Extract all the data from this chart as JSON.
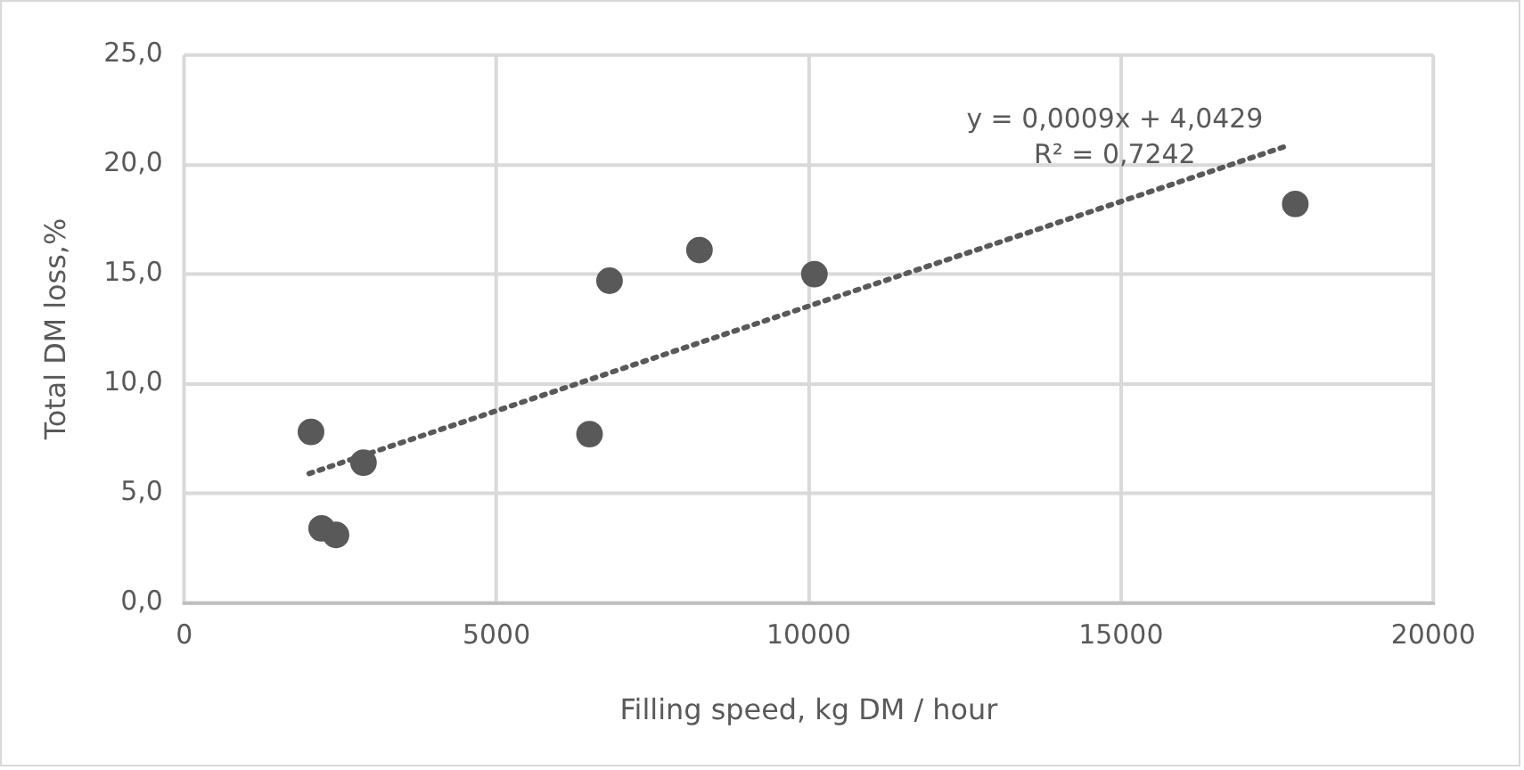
{
  "chart_data": {
    "type": "scatter",
    "xlabel": "Filling speed, kg DM / hour",
    "ylabel": "Total DM loss,%",
    "xlim": [
      0,
      20000
    ],
    "xticks": [
      0,
      5000,
      10000,
      15000,
      20000
    ],
    "ylim": [
      0,
      25
    ],
    "yticks": [
      {
        "value": 0,
        "label": "0,0"
      },
      {
        "value": 5,
        "label": "5,0"
      },
      {
        "value": 10,
        "label": "10,0"
      },
      {
        "value": 15,
        "label": "15,0"
      },
      {
        "value": 20,
        "label": "20,0"
      },
      {
        "value": 25,
        "label": "25,0"
      }
    ],
    "grid": true,
    "marker": "circle",
    "series": [
      {
        "color": "#595959",
        "x": [
          2030,
          2870,
          2200,
          2430,
          6490,
          6810,
          8250,
          10090,
          17790
        ],
        "values": [
          7.8,
          6.4,
          3.4,
          3.1,
          7.7,
          14.7,
          16.1,
          15.0,
          18.2
        ]
      },
      {
        "type": "line",
        "line_style": "dotted",
        "marker": "none",
        "color": "#595959",
        "x": [
          2000,
          17600
        ],
        "values": [
          5.9,
          20.8
        ]
      }
    ],
    "annotations": [
      "y = 0,0009x + 4,0429",
      "R² = 0,7242"
    ]
  }
}
